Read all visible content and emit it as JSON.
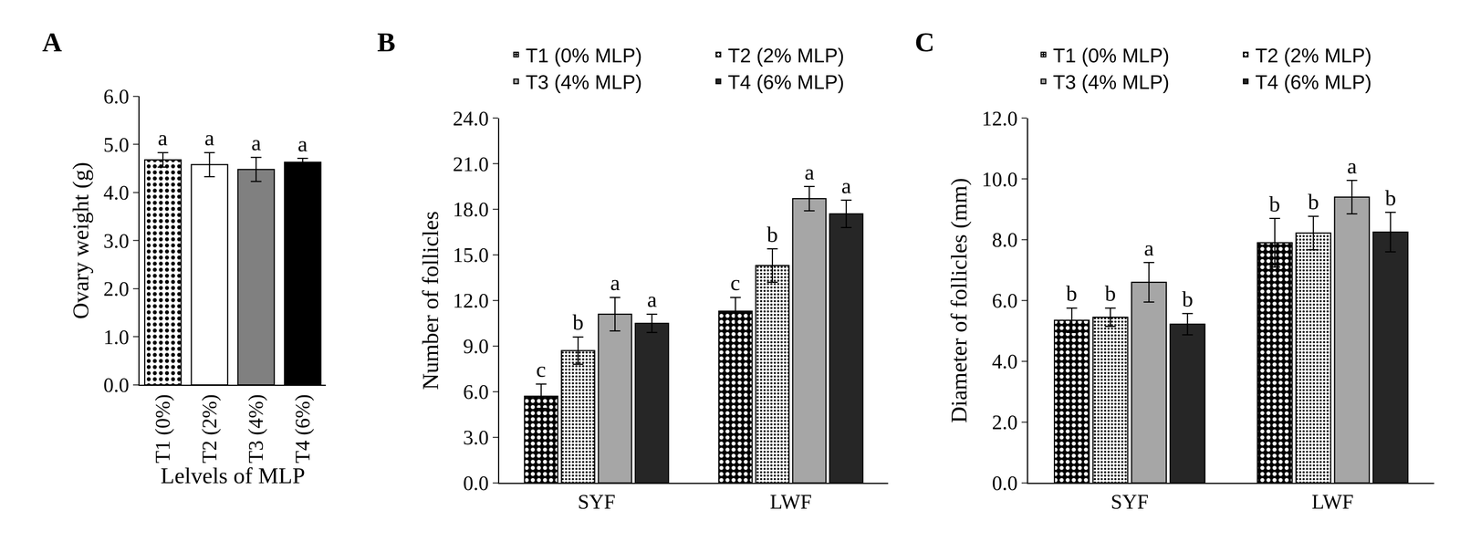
{
  "chart_data": [
    {
      "type": "bar",
      "title": "A",
      "categories": [
        "T1 (0%)",
        "T2 (2%)",
        "T3 (4%)",
        "T4 (6%)"
      ],
      "values": [
        4.68,
        4.58,
        4.48,
        4.63
      ],
      "errors": [
        0.15,
        0.25,
        0.25,
        0.08
      ],
      "letters": [
        "a",
        "a",
        "a",
        "a"
      ],
      "colors": [
        "#000000",
        "#ffffff",
        "#808080",
        "#000000"
      ],
      "markers": [
        "dots",
        "fine_dots",
        "solid",
        "solid"
      ],
      "x_label": "Lelvels of MLP",
      "y_label": "Ovary weight (g)",
      "ylim": [
        0,
        6
      ],
      "yticks": [
        {
          "value": 0,
          "label": "0.0"
        },
        {
          "value": 1,
          "label": "1.0"
        },
        {
          "value": 2,
          "label": "2.0"
        },
        {
          "value": 3,
          "label": "3.0"
        },
        {
          "value": 4,
          "label": "4.0"
        },
        {
          "value": 5,
          "label": "5.0"
        },
        {
          "value": 6,
          "label": "6.0"
        }
      ]
    },
    {
      "type": "bar",
      "title": "B",
      "categories": [
        "SYF",
        "LWF"
      ],
      "series": [
        {
          "name": "T1 (0% MLP)",
          "color": "#000000",
          "marker": "dots",
          "values": [
            5.7,
            11.3
          ],
          "errors": [
            0.8,
            0.9
          ],
          "letters": [
            "c",
            "c"
          ]
        },
        {
          "name": "T2 (2% MLP)",
          "color": "#ffffff",
          "marker": "fine_dots",
          "values": [
            8.7,
            14.3
          ],
          "errors": [
            0.9,
            1.1
          ],
          "letters": [
            "b",
            "b"
          ]
        },
        {
          "name": "T3 (4% MLP)",
          "color": "#a6a6a6",
          "marker": "solid",
          "values": [
            11.1,
            18.7
          ],
          "errors": [
            1.1,
            0.8
          ],
          "letters": [
            "a",
            "a"
          ]
        },
        {
          "name": "T4 (6% MLP)",
          "color": "#262626",
          "marker": "solid",
          "values": [
            10.5,
            17.7
          ],
          "errors": [
            0.6,
            0.9
          ],
          "letters": [
            "a",
            "a"
          ]
        }
      ],
      "y_label": "Number of follicles",
      "ylim": [
        0,
        24
      ],
      "yticks": [
        {
          "value": 0,
          "label": "0.0"
        },
        {
          "value": 3,
          "label": "3.0"
        },
        {
          "value": 6,
          "label": "6.0"
        },
        {
          "value": 9,
          "label": "9.0"
        },
        {
          "value": 12,
          "label": "12.0"
        },
        {
          "value": 15,
          "label": "15.0"
        },
        {
          "value": 18,
          "label": "18.0"
        },
        {
          "value": 21,
          "label": "21.0"
        },
        {
          "value": 24,
          "label": "24.0"
        }
      ],
      "legend": "top"
    },
    {
      "type": "bar",
      "title": "C",
      "categories": [
        "SYF",
        "LWF"
      ],
      "series": [
        {
          "name": "T1 (0% MLP)",
          "color": "#000000",
          "marker": "dots",
          "values": [
            5.35,
            7.9
          ],
          "errors": [
            0.4,
            0.8
          ],
          "letters": [
            "b",
            "b"
          ]
        },
        {
          "name": "T2 (2% MLP)",
          "color": "#ffffff",
          "marker": "fine_dots",
          "values": [
            5.45,
            8.22
          ],
          "errors": [
            0.3,
            0.55
          ],
          "letters": [
            "b",
            "b"
          ]
        },
        {
          "name": "T3 (4% MLP)",
          "color": "#a6a6a6",
          "marker": "solid",
          "values": [
            6.6,
            9.4
          ],
          "errors": [
            0.65,
            0.55
          ],
          "letters": [
            "a",
            "a"
          ]
        },
        {
          "name": "T4 (6% MLP)",
          "color": "#262626",
          "marker": "solid",
          "values": [
            5.22,
            8.25
          ],
          "errors": [
            0.35,
            0.65
          ],
          "letters": [
            "b",
            "b"
          ]
        }
      ],
      "y_label": "Diameter of follicles (mm)",
      "ylim": [
        0,
        12
      ],
      "yticks": [
        {
          "value": 0,
          "label": "0.0"
        },
        {
          "value": 2,
          "label": "2.0"
        },
        {
          "value": 4,
          "label": "4.0"
        },
        {
          "value": 6,
          "label": "6.0"
        },
        {
          "value": 8,
          "label": "8.0"
        },
        {
          "value": 10,
          "label": "10.0"
        },
        {
          "value": 12,
          "label": "12.0"
        }
      ],
      "legend": "top"
    }
  ]
}
